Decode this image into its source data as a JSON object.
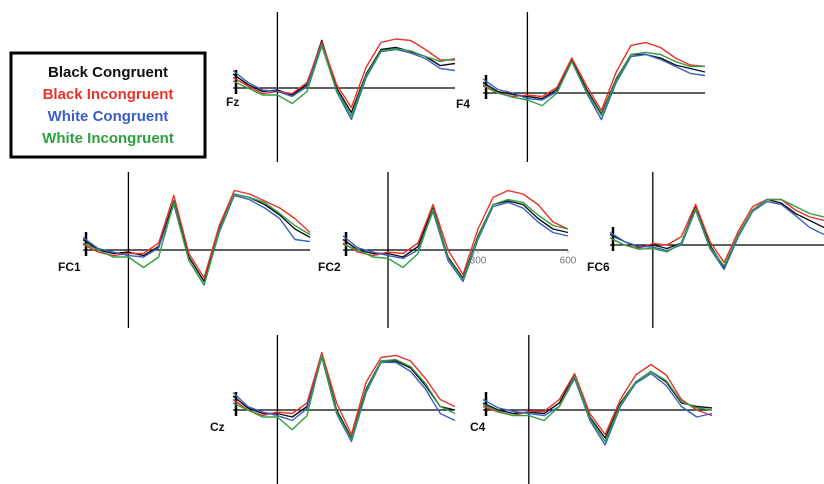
{
  "chart_data": [
    {
      "type": "line",
      "label": "Fz",
      "x": [
        -150,
        -100,
        -50,
        0,
        50,
        100,
        150,
        200,
        250,
        300,
        350,
        400,
        450,
        500,
        550,
        600
      ],
      "xlim": [
        -150,
        600
      ],
      "ylim": [
        -5,
        9
      ],
      "series": [
        {
          "name": "Black Congruent",
          "color": "#111111",
          "values": [
            2,
            0.5,
            -0.5,
            -0.3,
            -1,
            0.5,
            6.8,
            0,
            -3.5,
            2,
            5.5,
            5.8,
            5.2,
            4.5,
            3.2,
            3.5
          ]
        },
        {
          "name": "Black Incongruent",
          "color": "#e8322b",
          "values": [
            1.5,
            0.3,
            -0.8,
            -0.5,
            -0.8,
            0.8,
            6.5,
            0.5,
            -2.8,
            3,
            6.5,
            7,
            6.8,
            5.5,
            4,
            4
          ]
        },
        {
          "name": "White Congruent",
          "color": "#3b5fc4",
          "values": [
            2.5,
            0.8,
            -0.3,
            -0.5,
            -1.2,
            0.2,
            6.2,
            -0.5,
            -4.5,
            1.5,
            5.2,
            5.5,
            5,
            4.2,
            2.8,
            2.5
          ]
        },
        {
          "name": "White Incongruent",
          "color": "#2ea043",
          "values": [
            1,
            0,
            -1,
            -1,
            -2.2,
            -0.5,
            6,
            -0.3,
            -4,
            1.8,
            5.3,
            5.6,
            5.3,
            4.5,
            3.8,
            4.2
          ]
        }
      ]
    },
    {
      "type": "line",
      "label": "F4",
      "x": [
        -150,
        -100,
        -50,
        0,
        50,
        100,
        150,
        200,
        250,
        300,
        350,
        400,
        450,
        500,
        550,
        600
      ],
      "xlim": [
        -150,
        600
      ],
      "ylim": [
        -5,
        9
      ],
      "series": [
        {
          "name": "Black Congruent",
          "color": "#111111",
          "values": [
            1.5,
            0.2,
            -0.2,
            -0.5,
            -0.8,
            0.5,
            4.8,
            0.5,
            -3,
            2,
            5.5,
            5.5,
            5,
            4,
            3.5,
            3
          ]
        },
        {
          "name": "Black Incongruent",
          "color": "#e8322b",
          "values": [
            1,
            0,
            -0.5,
            -0.3,
            -0.5,
            0.8,
            5,
            1,
            -2.5,
            3,
            6.8,
            7.2,
            6.5,
            5,
            4,
            3.8
          ]
        },
        {
          "name": "White Congruent",
          "color": "#3b5fc4",
          "values": [
            2,
            0.5,
            0,
            -0.8,
            -1,
            0.2,
            4.5,
            0,
            -3.8,
            1.5,
            5.2,
            5.5,
            4.8,
            3.8,
            2.8,
            2.5
          ]
        },
        {
          "name": "White Incongruent",
          "color": "#2ea043",
          "values": [
            1.2,
            0,
            -0.6,
            -1,
            -1.8,
            0,
            4.5,
            0.2,
            -3.2,
            1.8,
            5.5,
            5.8,
            5.5,
            4.5,
            3.8,
            3.8
          ]
        }
      ]
    },
    {
      "type": "line",
      "label": "FC1",
      "x": [
        -150,
        -100,
        -50,
        0,
        50,
        100,
        150,
        200,
        250,
        300,
        350,
        400,
        450,
        500,
        550,
        600
      ],
      "xlim": [
        -150,
        600
      ],
      "ylim": [
        -5,
        9
      ],
      "series": [
        {
          "name": "Black Congruent",
          "color": "#111111",
          "values": [
            1.5,
            0,
            -0.5,
            -0.3,
            -0.8,
            0.5,
            7,
            -1,
            -4.5,
            3,
            8,
            7.5,
            6.5,
            5,
            3,
            1.8
          ]
        },
        {
          "name": "Black Incongruent",
          "color": "#e8322b",
          "values": [
            0.8,
            -0.3,
            -0.8,
            -0.5,
            -0.5,
            1,
            7.8,
            -0.5,
            -4,
            3.5,
            8.5,
            8,
            7,
            6,
            4.5,
            2.5
          ]
        },
        {
          "name": "White Congruent",
          "color": "#3b5fc4",
          "values": [
            1.8,
            0.2,
            -0.3,
            -0.8,
            -1,
            0.3,
            6.5,
            -1.5,
            -5,
            2.5,
            7.8,
            7.2,
            6,
            4.5,
            1.5,
            1.2
          ]
        },
        {
          "name": "White Incongruent",
          "color": "#2ea043",
          "values": [
            1,
            0,
            -1,
            -1,
            -2.5,
            -1,
            6.8,
            -1.5,
            -5,
            2.8,
            8,
            7.5,
            6.8,
            5.2,
            3.5,
            2.2
          ]
        }
      ]
    },
    {
      "type": "line",
      "label": "FC2",
      "x": [
        -150,
        -100,
        -50,
        0,
        50,
        100,
        150,
        200,
        250,
        300,
        350,
        400,
        450,
        500,
        550,
        600
      ],
      "xlim": [
        -150,
        600
      ],
      "ylim": [
        -5,
        9
      ],
      "xticks": [
        300,
        600
      ],
      "series": [
        {
          "name": "Black Congruent",
          "color": "#111111",
          "values": [
            1.5,
            0,
            -0.5,
            -0.5,
            -1,
            0.5,
            6,
            -1,
            -4,
            2,
            6.5,
            7,
            6.5,
            4.5,
            3,
            2.5
          ]
        },
        {
          "name": "Black Incongruent",
          "color": "#e8322b",
          "values": [
            1,
            -0.3,
            -0.8,
            -0.3,
            -0.5,
            1,
            6.5,
            0,
            -3.5,
            3,
            7.5,
            8.5,
            8,
            6.5,
            4,
            3
          ]
        },
        {
          "name": "White Congruent",
          "color": "#3b5fc4",
          "values": [
            2,
            0.3,
            -0.3,
            -0.8,
            -1.2,
            0,
            5.5,
            -1.5,
            -4.5,
            1.5,
            6.2,
            6.8,
            6,
            4,
            2.5,
            2
          ]
        },
        {
          "name": "White Incongruent",
          "color": "#2ea043",
          "values": [
            0.8,
            0,
            -1,
            -1.2,
            -2.5,
            -0.5,
            5.8,
            -1.2,
            -4.2,
            1.8,
            6.5,
            7.2,
            6.8,
            5,
            3.5,
            3
          ]
        }
      ]
    },
    {
      "type": "line",
      "label": "FC6",
      "x": [
        -150,
        -100,
        -50,
        0,
        50,
        100,
        150,
        200,
        250,
        300,
        350,
        400,
        450,
        500,
        550,
        600
      ],
      "xlim": [
        -150,
        600
      ],
      "ylim": [
        -5,
        9
      ],
      "series": [
        {
          "name": "Black Congruent",
          "color": "#111111",
          "values": [
            1.5,
            0.5,
            -0.3,
            0,
            -0.5,
            0.3,
            5.5,
            0,
            -3.2,
            1.5,
            5,
            6.5,
            6,
            4.5,
            3.5,
            2.5
          ]
        },
        {
          "name": "Black Incongruent",
          "color": "#e8322b",
          "values": [
            1,
            0,
            -0.5,
            0.2,
            0,
            1.2,
            5.8,
            0.5,
            -2.5,
            2,
            5.5,
            6.5,
            6.5,
            5,
            4,
            3.5
          ]
        },
        {
          "name": "White Congruent",
          "color": "#3b5fc4",
          "values": [
            1.8,
            0.5,
            -0.2,
            -0.3,
            -0.8,
            0,
            5,
            -0.5,
            -3.5,
            1.2,
            4.8,
            6.2,
            5.8,
            4.2,
            2.5,
            1.5
          ]
        },
        {
          "name": "White Incongruent",
          "color": "#2ea043",
          "values": [
            1,
            0,
            -0.6,
            -0.5,
            -1,
            0.3,
            5.2,
            -0.3,
            -3,
            1.5,
            5,
            6.5,
            6.5,
            5.5,
            4.5,
            4
          ]
        }
      ]
    },
    {
      "type": "line",
      "label": "Cz",
      "x": [
        -150,
        -100,
        -50,
        0,
        50,
        100,
        150,
        200,
        250,
        300,
        350,
        400,
        450,
        500,
        550,
        600
      ],
      "xlim": [
        -150,
        600
      ],
      "ylim": [
        -5,
        9
      ],
      "series": [
        {
          "name": "Black Congruent",
          "color": "#111111",
          "values": [
            2,
            0.3,
            -0.5,
            -0.5,
            -1,
            0.5,
            8,
            0,
            -4,
            3,
            7,
            7,
            6,
            3.5,
            0.5,
            0
          ]
        },
        {
          "name": "Black Incongruent",
          "color": "#e8322b",
          "values": [
            1.5,
            0,
            -0.8,
            -0.3,
            -0.5,
            1,
            8.2,
            1,
            -3.5,
            4,
            7.5,
            7.8,
            7,
            4.5,
            1.5,
            0.5
          ]
        },
        {
          "name": "White Congruent",
          "color": "#3b5fc4",
          "values": [
            2.5,
            0.5,
            -0.3,
            -0.8,
            -1.5,
            0.2,
            7.5,
            -0.5,
            -4.5,
            2.5,
            6.8,
            6.8,
            5.5,
            3,
            -0.5,
            -1.5
          ]
        },
        {
          "name": "White Incongruent",
          "color": "#2ea043",
          "values": [
            1,
            0,
            -1,
            -1,
            -2.8,
            -0.8,
            7.8,
            -0.3,
            -4.2,
            2.8,
            7,
            7.2,
            6.2,
            3.8,
            0.5,
            -0.5
          ]
        }
      ]
    },
    {
      "type": "line",
      "label": "C4",
      "x": [
        -150,
        -100,
        -50,
        0,
        50,
        100,
        150,
        200,
        250,
        300,
        350,
        400,
        450,
        500,
        550,
        600
      ],
      "xlim": [
        -150,
        600
      ],
      "ylim": [
        -5,
        9
      ],
      "series": [
        {
          "name": "Black Congruent",
          "color": "#111111",
          "values": [
            1,
            0,
            -0.5,
            -0.3,
            -0.5,
            1,
            5,
            -1,
            -4,
            1,
            4,
            5.5,
            4,
            1,
            0.5,
            0.3
          ]
        },
        {
          "name": "Black Incongruent",
          "color": "#e8322b",
          "values": [
            0.5,
            -0.3,
            -0.8,
            -0.2,
            -0.2,
            1.5,
            5.2,
            -0.5,
            -3.5,
            1.5,
            5,
            6.5,
            5,
            1.5,
            0,
            -0.8
          ]
        },
        {
          "name": "White Congruent",
          "color": "#3b5fc4",
          "values": [
            1.5,
            0.3,
            -0.2,
            -0.5,
            -0.8,
            0.5,
            4.5,
            -1.5,
            -5,
            0.5,
            3.8,
            5.2,
            3.5,
            0.5,
            -1,
            -0.5
          ]
        },
        {
          "name": "White Incongruent",
          "color": "#2ea043",
          "values": [
            0.8,
            -0.2,
            -0.8,
            -0.8,
            -1.5,
            0.5,
            4.8,
            -1.2,
            -4.5,
            0.8,
            4,
            5.5,
            4.2,
            1.2,
            0.3,
            0
          ]
        }
      ]
    }
  ]
}
